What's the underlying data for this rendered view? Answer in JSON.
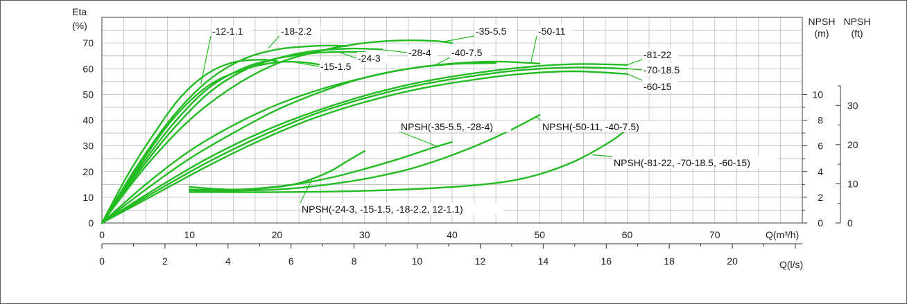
{
  "chart_data": {
    "type": "line",
    "curve_color": "#22bb22",
    "x_axis_top": {
      "label": "Q(m³/h)",
      "range": [
        0,
        80
      ],
      "ticks": [
        0,
        10,
        20,
        30,
        40,
        50,
        60,
        70
      ]
    },
    "x_axis_bottom": {
      "label": "Q(l/s)",
      "range": [
        0,
        22.22
      ],
      "ticks": [
        0,
        2,
        4,
        6,
        8,
        10,
        12,
        14,
        16,
        18,
        20
      ]
    },
    "y_axis_left": {
      "label_line1": "Eta",
      "label_line2": "(%)",
      "range": [
        0,
        80
      ],
      "ticks": [
        0,
        10,
        20,
        30,
        40,
        50,
        60,
        70
      ]
    },
    "y_axis_npsh_m": {
      "label_line1": "NPSH",
      "label_line2": "(m)",
      "range": [
        0,
        16
      ],
      "ticks": [
        0,
        2,
        4,
        6,
        8,
        10
      ]
    },
    "y_axis_npsh_ft": {
      "label_line1": "NPSH",
      "label_line2": "(ft)",
      "range": [
        0,
        52.5
      ],
      "ticks": [
        0,
        10,
        20,
        30
      ]
    },
    "grid": true,
    "efficiency_curves": [
      {
        "name": "-12-1.1",
        "x": [
          0,
          3,
          6,
          9,
          12,
          15,
          18,
          20
        ],
        "y": [
          0,
          19,
          35,
          49,
          58,
          62.5,
          63.5,
          63
        ]
      },
      {
        "name": "-18-2.2",
        "x": [
          0,
          4,
          8,
          12,
          16,
          20,
          24,
          26,
          28
        ],
        "y": [
          0,
          22,
          41,
          55,
          63.5,
          67.5,
          68.8,
          69,
          68.8
        ]
      },
      {
        "name": "-15-1.5",
        "x": [
          0,
          4,
          8,
          12,
          16,
          20,
          23,
          25
        ],
        "y": [
          0,
          21,
          40,
          53,
          59.5,
          62.5,
          62.5,
          61.5
        ]
      },
      {
        "name": "-24-3",
        "x": [
          0,
          4,
          8,
          12,
          16,
          20,
          24,
          27,
          30
        ],
        "y": [
          0,
          20,
          38,
          52,
          60,
          64,
          66,
          66.5,
          66.5
        ]
      },
      {
        "name": "-28-4",
        "x": [
          0,
          4,
          8,
          12,
          16,
          20,
          24,
          28,
          30,
          32
        ],
        "y": [
          0,
          19,
          36,
          50,
          59,
          64,
          66.8,
          67.8,
          67.8,
          67.5
        ]
      },
      {
        "name": "-35-5.5",
        "x": [
          0,
          5,
          10,
          15,
          20,
          25,
          30,
          34,
          38,
          40
        ],
        "y": [
          0,
          22,
          40,
          53,
          62,
          67,
          70,
          71,
          70.8,
          70
        ]
      },
      {
        "name": "-40-7.5",
        "x": [
          0,
          5,
          10,
          15,
          20,
          25,
          30,
          35,
          40,
          45
        ],
        "y": [
          0,
          13,
          25,
          35,
          44,
          51,
          56.5,
          60,
          61.8,
          62.2
        ]
      },
      {
        "name": "-50-11",
        "x": [
          0,
          5,
          10,
          15,
          20,
          25,
          30,
          35,
          40,
          45,
          50
        ],
        "y": [
          0,
          15,
          28,
          38,
          46,
          52,
          56.5,
          60,
          62,
          62.8,
          62
        ]
      },
      {
        "name": "-81-22",
        "x": [
          0,
          6,
          12,
          18,
          24,
          30,
          36,
          42,
          48,
          54,
          60
        ],
        "y": [
          0,
          13,
          25,
          35,
          43,
          49.5,
          54.5,
          58,
          60.5,
          61.8,
          61.5
        ]
      },
      {
        "name": "-70-18.5",
        "x": [
          0,
          6,
          12,
          18,
          24,
          30,
          36,
          42,
          48,
          54,
          60
        ],
        "y": [
          0,
          12,
          23.5,
          33.5,
          42,
          48.5,
          53.5,
          57,
          59.5,
          60.5,
          60
        ]
      },
      {
        "name": "-60-15",
        "x": [
          0,
          6,
          12,
          18,
          24,
          30,
          36,
          42,
          48,
          54,
          60
        ],
        "y": [
          0,
          11,
          22,
          32,
          40.5,
          47,
          52,
          55.5,
          58,
          59,
          58
        ]
      }
    ],
    "npsh_curves": [
      {
        "name": "NPSH(-24-3, -15-1.5, -18-2.2, 12-1.1)",
        "unit": "m",
        "x": [
          10,
          15,
          20,
          23,
          26,
          28,
          30
        ],
        "y": [
          2.8,
          2.6,
          2.8,
          3.2,
          4,
          4.8,
          5.6
        ]
      },
      {
        "name": "NPSH(-35-5.5, -28-4)",
        "unit": "m",
        "x": [
          10,
          16,
          22,
          26,
          30,
          34,
          38,
          40
        ],
        "y": [
          2.6,
          2.6,
          3,
          3.5,
          4.2,
          5,
          5.9,
          6.3
        ]
      },
      {
        "name": "NPSH(-50-11, -40-7.5)",
        "unit": "m",
        "x": [
          10,
          20,
          28,
          34,
          38,
          42,
          46,
          50
        ],
        "y": [
          2.5,
          2.6,
          3.2,
          4,
          4.8,
          5.8,
          7,
          8.4
        ]
      },
      {
        "name": "NPSH(-81-22, -70-18.5, -60-15)",
        "unit": "m",
        "x": [
          10,
          20,
          30,
          40,
          46,
          50,
          54,
          58,
          60
        ],
        "y": [
          2.4,
          2.4,
          2.5,
          2.8,
          3.2,
          3.8,
          4.8,
          6.3,
          7.3
        ]
      }
    ],
    "labels": [
      {
        "curve": "-12-1.1",
        "text": "-12-1.1",
        "at_x": 11.3,
        "at_y": 54
      },
      {
        "curve": "-18-2.2",
        "text": "-18-2.2",
        "at_x": 19,
        "at_y": 68
      },
      {
        "curve": "-15-1.5",
        "text": "-15-1.5",
        "at_x": 22,
        "at_y": 62.5
      },
      {
        "curve": "-24-3",
        "text": "-24-3",
        "at_x": 27,
        "at_y": 66.5
      },
      {
        "curve": "-28-4",
        "text": "-28-4",
        "at_x": 31,
        "at_y": 67.8
      },
      {
        "curve": "-35-5.5",
        "text": "-35-5.5",
        "at_x": 39,
        "at_y": 70.5
      },
      {
        "curve": "-40-7.5",
        "text": "-40-7.5",
        "at_x": 38,
        "at_y": 61.3
      },
      {
        "curve": "-50-11",
        "text": "-50-11",
        "at_x": 49,
        "at_y": 62.3
      },
      {
        "curve": "-81-22",
        "text": "-81-22",
        "at_x": 60,
        "at_y": 61.5
      },
      {
        "curve": "-70-18.5",
        "text": "-70-18.5",
        "at_x": 60,
        "at_y": 60
      },
      {
        "curve": "-60-15",
        "text": "-60-15",
        "at_x": 60,
        "at_y": 58
      },
      {
        "curve": "NPSH(-24-3, -15-1.5, -18-2.2, 12-1.1)",
        "text": "NPSH(-24-3, -15-1.5, -18-2.2, 12-1.1)",
        "at_x": 24,
        "at_y_m": 3.4
      },
      {
        "curve": "NPSH(-35-5.5, -28-4)",
        "text": "NPSH(-35-5.5, -28-4)",
        "at_x": 38.5,
        "at_y_m": 5.9
      },
      {
        "curve": "NPSH(-50-11, -40-7.5)",
        "text": "NPSH(-50-11, -40-7.5)",
        "at_x": 49.5,
        "at_y_m": 8.3
      },
      {
        "curve": "NPSH(-81-22, -70-18.5, -60-15)",
        "text": "NPSH(-81-22, -70-18.5, -60-15)",
        "at_x": 56,
        "at_y_m": 5.3
      }
    ]
  }
}
